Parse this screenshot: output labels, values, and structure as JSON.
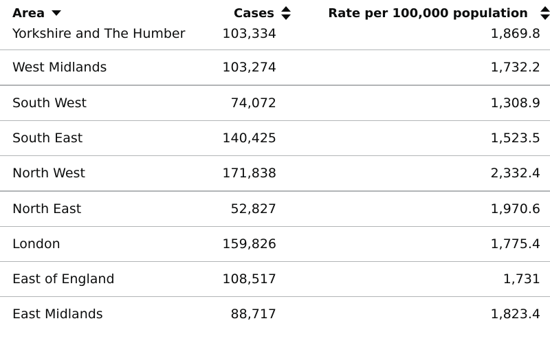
{
  "table": {
    "headers": {
      "area": "Area",
      "cases": "Cases",
      "rate": "Rate per 100,000 population"
    },
    "sort_icons": {
      "area": "caret-down-icon",
      "cases": "sort-updown-icon",
      "rate": "sort-updown-icon"
    },
    "rows": [
      {
        "area": "Yorkshire and The Humber",
        "cases": "103,334",
        "rate": "1,869.8"
      },
      {
        "area": "West Midlands",
        "cases": "103,274",
        "rate": "1,732.2"
      },
      {
        "area": "South West",
        "cases": "74,072",
        "rate": "1,308.9"
      },
      {
        "area": "South East",
        "cases": "140,425",
        "rate": "1,523.5"
      },
      {
        "area": "North West",
        "cases": "171,838",
        "rate": "2,332.4"
      },
      {
        "area": "North East",
        "cases": "52,827",
        "rate": "1,970.6"
      },
      {
        "area": "London",
        "cases": "159,826",
        "rate": "1,775.4"
      },
      {
        "area": "East of England",
        "cases": "108,517",
        "rate": "1,731"
      },
      {
        "area": "East Midlands",
        "cases": "88,717",
        "rate": "1,823.4"
      }
    ]
  }
}
